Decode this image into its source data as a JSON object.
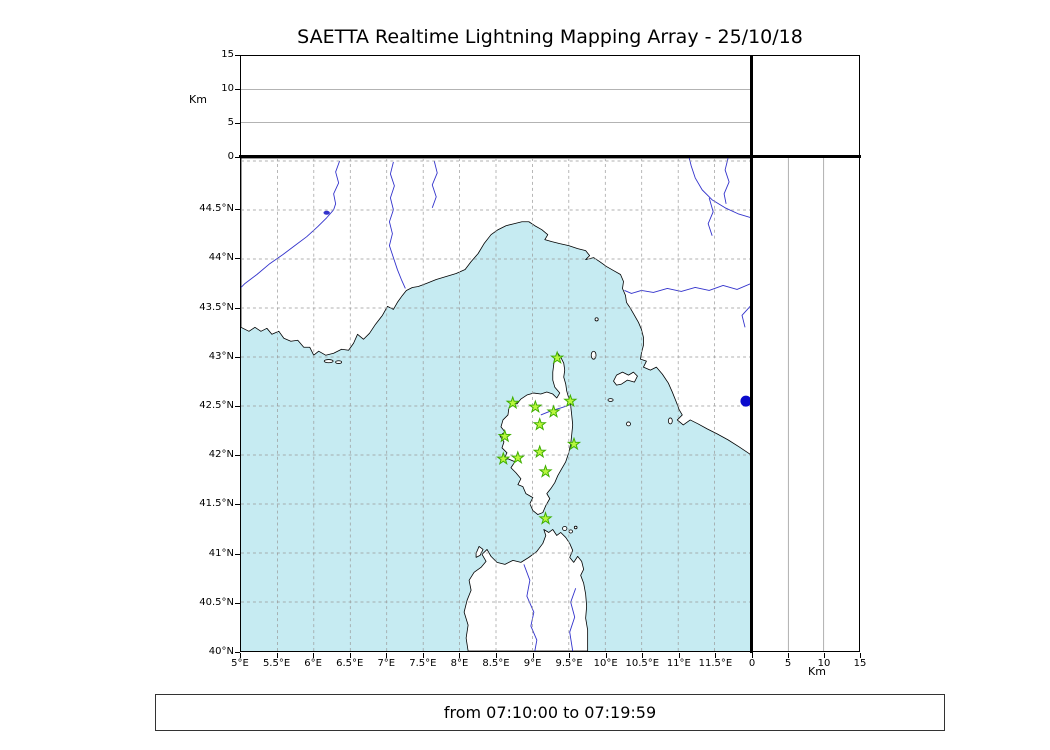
{
  "title": "SAETTA Realtime Lightning Mapping Array - 25/10/18",
  "footer": {
    "text": "from 07:10:00 to 07:19:59"
  },
  "map": {
    "lon_min": 5,
    "lon_max": 12,
    "lat_min": 40,
    "lat_max": 45.03,
    "grid_step": 0.5,
    "lon_ticks": [
      {
        "v": 5,
        "label": "5°E"
      },
      {
        "v": 5.5,
        "label": "5.5°E"
      },
      {
        "v": 6,
        "label": "6°E"
      },
      {
        "v": 6.5,
        "label": "6.5°E"
      },
      {
        "v": 7,
        "label": "7°E"
      },
      {
        "v": 7.5,
        "label": "7.5°E"
      },
      {
        "v": 8,
        "label": "8°E"
      },
      {
        "v": 8.5,
        "label": "8.5°E"
      },
      {
        "v": 9,
        "label": "9°E"
      },
      {
        "v": 9.5,
        "label": "9.5°E"
      },
      {
        "v": 10,
        "label": "10°E"
      },
      {
        "v": 10.5,
        "label": "10.5°E"
      },
      {
        "v": 11,
        "label": "11°E"
      },
      {
        "v": 11.5,
        "label": "11.5°E"
      }
    ],
    "lat_ticks": [
      {
        "v": 40,
        "label": "40°N"
      },
      {
        "v": 40.5,
        "label": "40.5°N"
      },
      {
        "v": 41,
        "label": "41°N"
      },
      {
        "v": 41.5,
        "label": "41.5°N"
      },
      {
        "v": 42,
        "label": "42°N"
      },
      {
        "v": 42.5,
        "label": "42.5°N"
      },
      {
        "v": 43,
        "label": "43°N"
      },
      {
        "v": 43.5,
        "label": "43.5°N"
      },
      {
        "v": 44,
        "label": "44°N"
      },
      {
        "v": 44.5,
        "label": "44.5°N"
      }
    ]
  },
  "altitude_axis": {
    "label": "Km",
    "max": 15,
    "ticks": [
      {
        "v": 0,
        "label": "0"
      },
      {
        "v": 5,
        "label": "5"
      },
      {
        "v": 10,
        "label": "10"
      },
      {
        "v": 15,
        "label": "15"
      }
    ],
    "grid": [
      5,
      10
    ]
  },
  "stations": [
    {
      "lon": 9.34,
      "lat": 42.99
    },
    {
      "lon": 8.73,
      "lat": 42.53
    },
    {
      "lon": 9.04,
      "lat": 42.49
    },
    {
      "lon": 9.29,
      "lat": 42.44
    },
    {
      "lon": 9.52,
      "lat": 42.55
    },
    {
      "lon": 9.1,
      "lat": 42.31
    },
    {
      "lon": 8.62,
      "lat": 42.19
    },
    {
      "lon": 9.57,
      "lat": 42.11
    },
    {
      "lon": 8.6,
      "lat": 41.96
    },
    {
      "lon": 8.8,
      "lat": 41.97
    },
    {
      "lon": 9.1,
      "lat": 42.03
    },
    {
      "lon": 9.18,
      "lat": 41.83
    },
    {
      "lon": 9.18,
      "lat": 41.35
    }
  ],
  "event_dot": {
    "lon": 11.93,
    "lat": 42.55
  },
  "colors": {
    "sea": "#c6ebf2",
    "land": "#ffffff",
    "coast": "#000000",
    "river": "#3333cc",
    "grid": "#999999",
    "station_fill": "#baf73e",
    "station_edge": "#3fae00",
    "event_dot": "#0a0acd"
  },
  "chart_data": {
    "type": "scatter",
    "title": "SAETTA Realtime Lightning Mapping Array - 25/10/18",
    "xlim": [
      5,
      12
    ],
    "ylim": [
      40,
      45.03
    ],
    "altitude_km_range": [
      0,
      15
    ],
    "altitude_ticks": [
      0,
      5,
      10,
      15
    ],
    "grid": "on",
    "series": [
      {
        "name": "lma-station-sites",
        "marker": "star",
        "x": [
          9.34,
          8.73,
          9.04,
          9.29,
          9.52,
          9.1,
          8.62,
          9.57,
          8.6,
          8.8,
          9.1,
          9.18,
          9.18
        ],
        "y": [
          42.99,
          42.53,
          42.49,
          42.44,
          42.55,
          42.31,
          42.19,
          42.11,
          41.96,
          41.97,
          42.03,
          41.83,
          41.35
        ]
      },
      {
        "name": "source-point",
        "marker": "circle",
        "x": [
          11.93
        ],
        "y": [
          42.55
        ]
      }
    ],
    "time_window": "from 07:10:00 to 07:19:59"
  }
}
